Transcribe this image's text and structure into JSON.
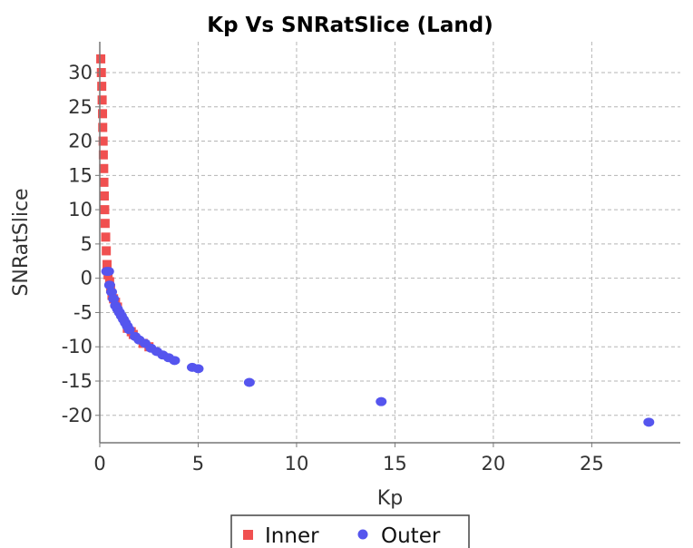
{
  "chart_data": {
    "type": "scatter",
    "title": "Kp Vs SNRatSlice (Land)",
    "xlabel": "Kp",
    "ylabel": "SNRatSlice",
    "xlim": [
      0,
      29.5
    ],
    "ylim": [
      -24,
      34.5
    ],
    "xticks": [
      0,
      5,
      10,
      15,
      20,
      25
    ],
    "yticks": [
      -20,
      -15,
      -10,
      -5,
      0,
      5,
      10,
      15,
      20,
      25,
      30
    ],
    "grid": true,
    "legend_position": "bottom",
    "series": [
      {
        "name": "Inner",
        "color": "#f05050",
        "marker": "square",
        "points": [
          [
            0.05,
            32.0
          ],
          [
            0.08,
            30.0
          ],
          [
            0.1,
            28.0
          ],
          [
            0.12,
            26.0
          ],
          [
            0.14,
            24.0
          ],
          [
            0.15,
            22.0
          ],
          [
            0.17,
            20.0
          ],
          [
            0.18,
            18.0
          ],
          [
            0.2,
            16.0
          ],
          [
            0.21,
            14.0
          ],
          [
            0.23,
            12.0
          ],
          [
            0.25,
            10.0
          ],
          [
            0.27,
            8.0
          ],
          [
            0.3,
            6.0
          ],
          [
            0.33,
            4.0
          ],
          [
            0.37,
            2.0
          ],
          [
            0.42,
            0.5
          ],
          [
            0.5,
            -0.5
          ],
          [
            0.55,
            -1.5
          ],
          [
            0.62,
            -2.5
          ],
          [
            0.7,
            -3.0
          ],
          [
            0.8,
            -3.5
          ],
          [
            0.9,
            -4.2
          ],
          [
            1.4,
            -7.3
          ],
          [
            1.6,
            -7.8
          ],
          [
            1.7,
            -8.2
          ],
          [
            2.2,
            -9.5
          ],
          [
            2.5,
            -10.0
          ]
        ]
      },
      {
        "name": "Outer",
        "color": "#5555ee",
        "marker": "circle",
        "points": [
          [
            0.35,
            1.0
          ],
          [
            0.45,
            1.0
          ],
          [
            0.5,
            -1.0
          ],
          [
            0.6,
            -2.0
          ],
          [
            0.7,
            -3.0
          ],
          [
            0.8,
            -4.0
          ],
          [
            0.9,
            -4.5
          ],
          [
            1.0,
            -5.0
          ],
          [
            1.1,
            -5.5
          ],
          [
            1.2,
            -6.0
          ],
          [
            1.3,
            -6.5
          ],
          [
            1.4,
            -7.0
          ],
          [
            1.5,
            -7.5
          ],
          [
            1.8,
            -8.5
          ],
          [
            2.0,
            -9.0
          ],
          [
            2.3,
            -9.5
          ],
          [
            2.6,
            -10.2
          ],
          [
            2.9,
            -10.7
          ],
          [
            3.2,
            -11.2
          ],
          [
            3.5,
            -11.6
          ],
          [
            3.8,
            -12.0
          ],
          [
            4.7,
            -13.0
          ],
          [
            5.0,
            -13.2
          ],
          [
            7.6,
            -15.2
          ],
          [
            14.3,
            -18.0
          ],
          [
            27.9,
            -21.0
          ]
        ]
      }
    ]
  }
}
